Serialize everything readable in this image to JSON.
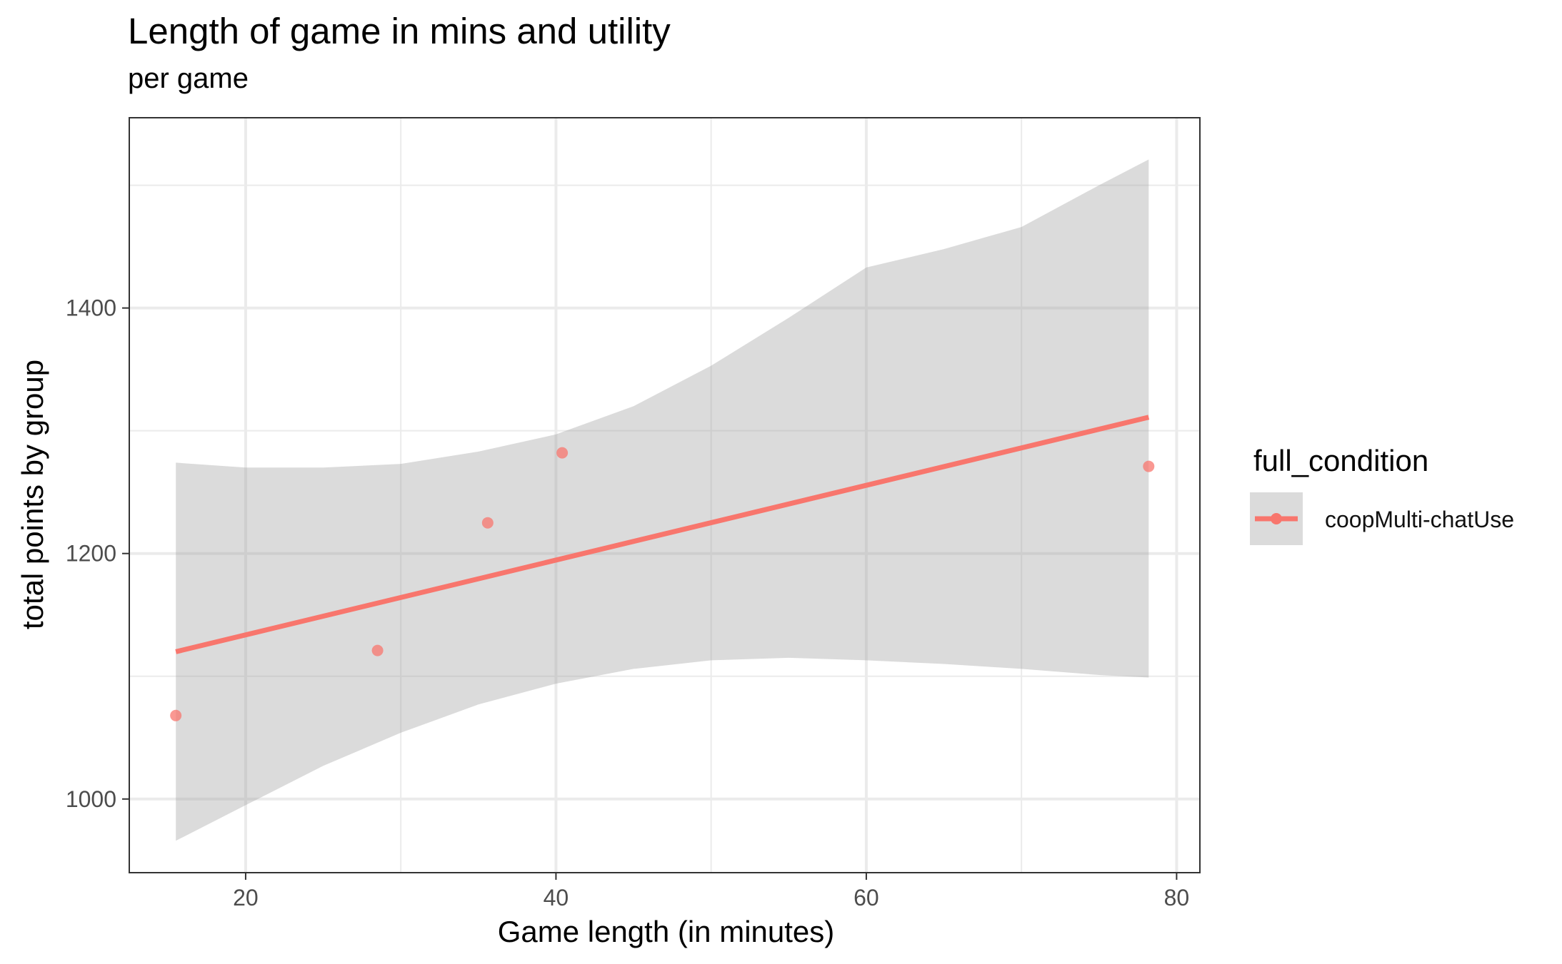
{
  "chart_data": {
    "type": "scatter",
    "title": "Length of game in mins and utility",
    "subtitle": "per game",
    "xlabel": "Game length (in minutes)",
    "ylabel": "total points by group",
    "xlim": [
      12.5,
      81.5
    ],
    "ylim": [
      940,
      1555
    ],
    "x_ticks": [
      20,
      40,
      60,
      80
    ],
    "y_ticks": [
      1000,
      1200,
      1400
    ],
    "x_tick_labels": [
      "20",
      "40",
      "60",
      "80"
    ],
    "y_tick_labels": [
      "1000",
      "1200",
      "1400"
    ],
    "x_minor": [
      30,
      50,
      70
    ],
    "y_minor": [
      1100,
      1300,
      1500
    ],
    "grid": true,
    "legend": {
      "title": "full_condition",
      "placement": "right",
      "entries": [
        "coopMulti-chatUse"
      ]
    },
    "series": [
      {
        "name": "coopMulti-chatUse",
        "color": "#F8766D",
        "points": [
          {
            "x": 15.5,
            "y": 1068
          },
          {
            "x": 28.5,
            "y": 1121
          },
          {
            "x": 35.6,
            "y": 1225
          },
          {
            "x": 40.4,
            "y": 1282
          },
          {
            "x": 78.2,
            "y": 1271
          }
        ],
        "fit_line": [
          {
            "x": 15.5,
            "y": 1120
          },
          {
            "x": 78.2,
            "y": 1311
          }
        ],
        "confidence_band": {
          "x": [
            15.5,
            20,
            25,
            30,
            35,
            40,
            45,
            50,
            55,
            60,
            65,
            70,
            75,
            78.2
          ],
          "lower": [
            966,
            995,
            1027,
            1054,
            1077,
            1094,
            1106,
            1113,
            1115,
            1113,
            1110,
            1106,
            1101,
            1099
          ],
          "upper": [
            1274,
            1270,
            1270,
            1273,
            1283,
            1297,
            1320,
            1353,
            1392,
            1433,
            1448,
            1466,
            1500,
            1521
          ]
        }
      }
    ]
  },
  "colors": {
    "series": "#F8766D",
    "band": "#999999",
    "grid": "#EBEBEB",
    "panel_border": "#333333"
  }
}
